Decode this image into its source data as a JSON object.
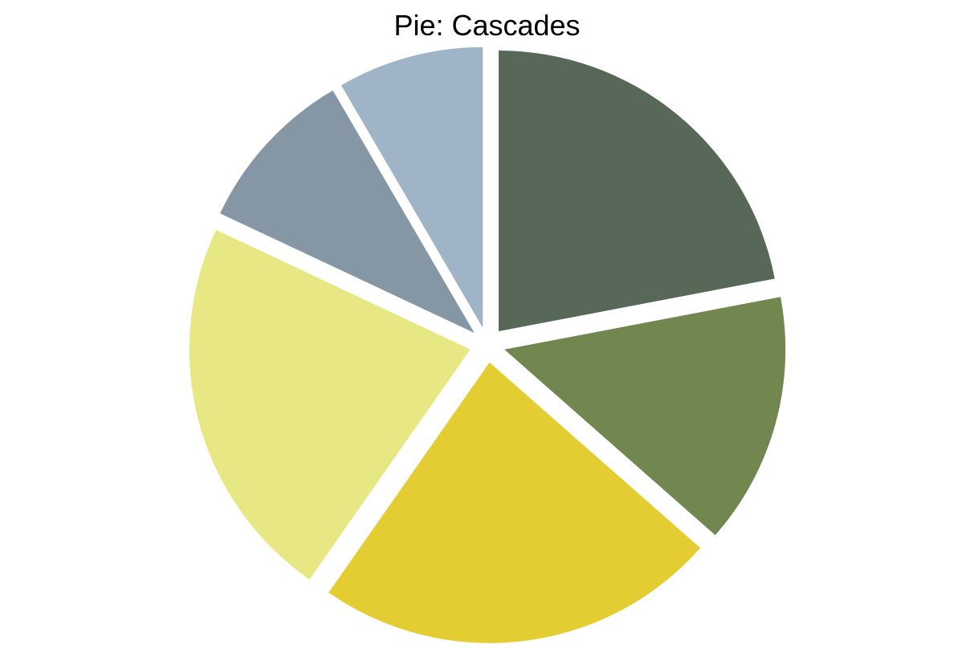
{
  "chart_data": {
    "type": "pie",
    "title": "Pie: Cascades",
    "start_angle_deg": 90,
    "direction": "clockwise",
    "exploded": true,
    "slices": [
      {
        "value": 22.0,
        "color": "#586858"
      },
      {
        "value": 14.5,
        "color": "#72864f"
      },
      {
        "value": 23.2,
        "color": "#e4cd33"
      },
      {
        "value": 22.3,
        "color": "#e7e883"
      },
      {
        "value": 9.6,
        "color": "#8597a5"
      },
      {
        "value": 8.4,
        "color": "#a0b4c8"
      }
    ]
  }
}
